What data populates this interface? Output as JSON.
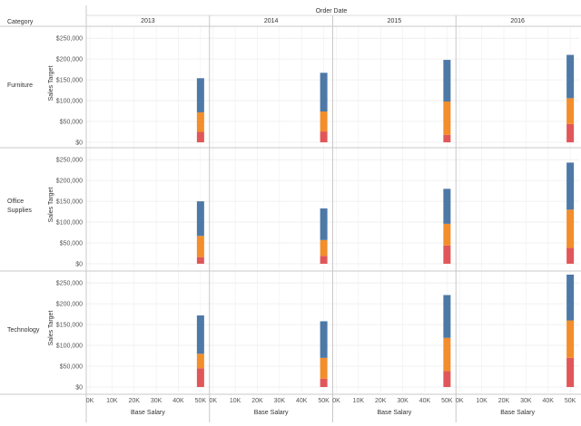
{
  "header": {
    "column_title": "Order Date",
    "row_header": "Category"
  },
  "chart_data": {
    "type": "bar",
    "stacked": true,
    "columns": [
      "2013",
      "2014",
      "2015",
      "2016"
    ],
    "rows": [
      "Furniture",
      "Office Supplies",
      "Technology"
    ],
    "xlabel": "Base Salary",
    "ylabel": "Sales Target",
    "x_ticks": [
      "0K",
      "10K",
      "20K",
      "30K",
      "40K",
      "50K"
    ],
    "xlim": [
      0,
      52000
    ],
    "y_ticks": [
      "$0",
      "$50,000",
      "$100,000",
      "$150,000",
      "$200,000",
      "$250,000"
    ],
    "ylim": [
      0,
      270000
    ],
    "bar_x": 50000,
    "segment_colors": [
      "#e15759",
      "#f28e2b",
      "#4e79a7"
    ],
    "panels": [
      {
        "row": "Furniture",
        "column": "2013",
        "segments": [
          25000,
          47000,
          82000
        ]
      },
      {
        "row": "Furniture",
        "column": "2014",
        "segments": [
          26000,
          48000,
          93000
        ]
      },
      {
        "row": "Furniture",
        "column": "2015",
        "segments": [
          18000,
          80000,
          100000
        ]
      },
      {
        "row": "Furniture",
        "column": "2016",
        "segments": [
          44000,
          62000,
          104000
        ]
      },
      {
        "row": "Office Supplies",
        "column": "2013",
        "segments": [
          16000,
          51000,
          83000
        ]
      },
      {
        "row": "Office Supplies",
        "column": "2014",
        "segments": [
          19000,
          38000,
          76000
        ]
      },
      {
        "row": "Office Supplies",
        "column": "2015",
        "segments": [
          44000,
          52000,
          84000
        ]
      },
      {
        "row": "Office Supplies",
        "column": "2016",
        "segments": [
          38000,
          92000,
          113000
        ]
      },
      {
        "row": "Technology",
        "column": "2013",
        "segments": [
          45000,
          35000,
          92000
        ]
      },
      {
        "row": "Technology",
        "column": "2014",
        "segments": [
          20000,
          50000,
          88000
        ]
      },
      {
        "row": "Technology",
        "column": "2015",
        "segments": [
          38000,
          80000,
          103000
        ]
      },
      {
        "row": "Technology",
        "column": "2016",
        "segments": [
          70000,
          90000,
          110000
        ]
      }
    ]
  }
}
